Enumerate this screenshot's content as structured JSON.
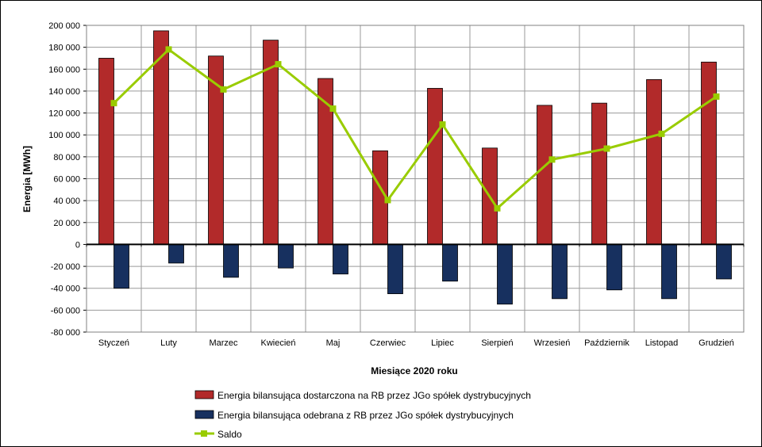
{
  "chart_data": {
    "type": "bar",
    "categories": [
      "Styczeń",
      "Luty",
      "Marzec",
      "Kwiecień",
      "Maj",
      "Czerwiec",
      "Lipiec",
      "Sierpień",
      "Wrzesień",
      "Październik",
      "Listopad",
      "Grudzień"
    ],
    "series": [
      {
        "name": "Energia bilansująca dostarczona na RB przez JGo spółek dystrybucyjnych",
        "type": "bar",
        "color": "#b22a2a",
        "values": [
          170000,
          195000,
          172000,
          186500,
          151500,
          85500,
          142500,
          88000,
          127000,
          129000,
          150500,
          166500
        ]
      },
      {
        "name": "Energia bilansująca odebrana z RB przez JGo spółek dystrybucyjnych",
        "type": "bar",
        "color": "#17305f",
        "values": [
          -40000,
          -17000,
          -30000,
          -21500,
          -27000,
          -45000,
          -33500,
          -54500,
          -49500,
          -41500,
          -49500,
          -31500
        ]
      },
      {
        "name": "Saldo",
        "type": "line",
        "color": "#99cc00",
        "values": [
          129000,
          178000,
          141500,
          164500,
          124000,
          40500,
          109500,
          33000,
          77500,
          87500,
          101000,
          135000
        ]
      }
    ],
    "xlabel": "Miesiące 2020  roku",
    "ylabel": "Energia [MWh]",
    "ylim": [
      -80000,
      200000
    ],
    "yticks": [
      "200 000",
      "180 000",
      "160 000",
      "140 000",
      "120 000",
      "100 000",
      "80 000",
      "60 000",
      "40 000",
      "20 000",
      "0",
      "-20 000",
      "-40 000",
      "-60 000",
      "-80 000"
    ],
    "grid": true,
    "legend": "bottom"
  }
}
